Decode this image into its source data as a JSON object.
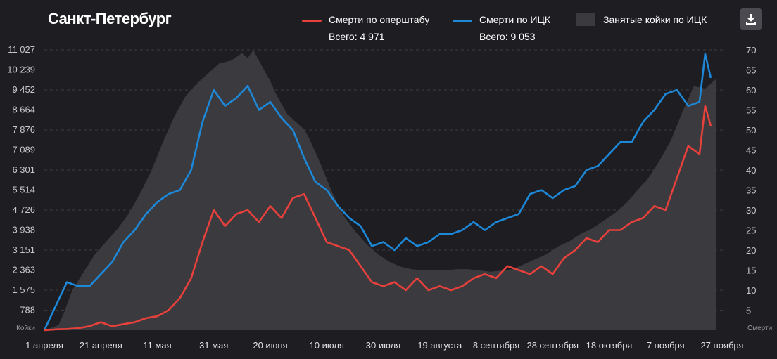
{
  "title": "Санкт-Петербург",
  "legend": {
    "opershtab": {
      "label": "Смерти по оперштабу",
      "total": "Всего: 4 971",
      "color": "#e8413c"
    },
    "ick": {
      "label": "Смерти по ИЦК",
      "total": "Всего: 9 053",
      "color": "#1e88d8"
    },
    "beds": {
      "label": "Занятые койки по ИЦК",
      "color": "#3a3a3f"
    }
  },
  "download_icon": "download-icon",
  "chart_data": {
    "type": "line",
    "x_ticks": [
      "1 апреля",
      "21 апреля",
      "11 мая",
      "31 мая",
      "20 июня",
      "10 июля",
      "30 июля",
      "19 августа",
      "8 сентября",
      "28 сентября",
      "18 октября",
      "7 ноября",
      "27 ноября"
    ],
    "y_left": {
      "label": "Койки",
      "ticks": [
        "788",
        "1 575",
        "2 363",
        "3 151",
        "3 938",
        "4 726",
        "5 514",
        "6 301",
        "7 089",
        "7 876",
        "8 664",
        "9 452",
        "10 239",
        "11 027"
      ],
      "range": [
        0,
        11027
      ]
    },
    "y_right": {
      "label": "Смерти",
      "ticks": [
        "5",
        "10",
        "15",
        "20",
        "25",
        "30",
        "35",
        "40",
        "45",
        "50",
        "55",
        "60",
        "65",
        "70"
      ],
      "range": [
        0,
        70
      ]
    },
    "grid": true,
    "series": [
      {
        "name": "Занятые койки по ИЦК",
        "axis": "left",
        "type": "area",
        "x": [
          0,
          5,
          7,
          10,
          14,
          18,
          22,
          26,
          30,
          34,
          38,
          42,
          46,
          50,
          54,
          58,
          62,
          66,
          70,
          72,
          74,
          76,
          78,
          80,
          82,
          84,
          86,
          88,
          90,
          92,
          94,
          98,
          102,
          106,
          110,
          114,
          118,
          122,
          126,
          130,
          134,
          138,
          142,
          146,
          150,
          154,
          158,
          162,
          166,
          170,
          174,
          178,
          182,
          186,
          190,
          194,
          198,
          202,
          206,
          210,
          214,
          218,
          222,
          226,
          230,
          234,
          238
        ],
        "values": [
          0,
          200,
          700,
          1600,
          2300,
          3000,
          3500,
          4000,
          4600,
          5400,
          6300,
          7400,
          8400,
          9200,
          9700,
          10100,
          10500,
          10600,
          10900,
          10700,
          11027,
          10600,
          10200,
          9800,
          9300,
          8900,
          8500,
          8300,
          8100,
          7900,
          7500,
          6500,
          5400,
          4500,
          3900,
          3400,
          3000,
          2700,
          2500,
          2400,
          2350,
          2350,
          2350,
          2400,
          2400,
          2350,
          2300,
          2350,
          2400,
          2600,
          2800,
          3000,
          3300,
          3500,
          3800,
          4000,
          4300,
          4600,
          5000,
          5500,
          6000,
          6700,
          7500,
          8600,
          9600,
          9500,
          9900
        ]
      },
      {
        "name": "Смерти по оперштабу",
        "axis": "right",
        "x": [
          0,
          4,
          8,
          12,
          16,
          20,
          24,
          28,
          32,
          36,
          40,
          44,
          48,
          52,
          56,
          60,
          64,
          68,
          72,
          76,
          80,
          84,
          88,
          92,
          96,
          100,
          104,
          108,
          112,
          116,
          120,
          124,
          128,
          132,
          136,
          140,
          144,
          148,
          152,
          156,
          160,
          164,
          168,
          172,
          176,
          180,
          184,
          188,
          192,
          196,
          200,
          204,
          208,
          212,
          216,
          220,
          224,
          228,
          232,
          234,
          236
        ],
        "values": [
          0,
          0.2,
          0.3,
          0.5,
          1,
          2,
          1,
          1.5,
          2,
          3,
          3.5,
          5,
          8,
          13,
          22,
          30,
          26,
          29,
          30,
          27,
          31,
          28,
          33,
          34,
          28,
          22,
          21,
          20,
          16,
          12,
          11,
          12,
          10,
          13,
          10,
          11,
          10,
          11,
          13,
          14,
          13,
          16,
          15,
          14,
          16,
          14,
          18,
          20,
          23,
          22,
          25,
          25,
          27,
          28,
          31,
          30,
          38,
          46,
          44,
          56,
          51
        ]
      },
      {
        "name": "Смерти по ИЦК",
        "axis": "right",
        "x": [
          0,
          4,
          8,
          12,
          16,
          20,
          24,
          28,
          32,
          36,
          40,
          44,
          48,
          52,
          56,
          60,
          64,
          68,
          72,
          76,
          80,
          84,
          88,
          92,
          96,
          100,
          104,
          108,
          112,
          116,
          120,
          124,
          128,
          132,
          136,
          140,
          144,
          148,
          152,
          156,
          160,
          164,
          168,
          172,
          176,
          180,
          184,
          188,
          192,
          196,
          200,
          204,
          208,
          212,
          216,
          220,
          224,
          228,
          232,
          234,
          236
        ],
        "values": [
          0,
          6,
          12,
          11,
          11,
          14,
          17,
          22,
          25,
          29,
          32,
          34,
          35,
          40,
          52,
          60,
          56,
          58,
          61,
          55,
          57,
          53,
          50,
          43,
          37,
          35,
          31,
          28,
          26,
          21,
          22,
          20,
          23,
          21,
          22,
          24,
          24,
          25,
          27,
          25,
          27,
          28,
          29,
          34,
          35,
          33,
          35,
          36,
          40,
          41,
          44,
          47,
          47,
          52,
          55,
          59,
          60,
          56,
          57,
          69,
          63
        ]
      }
    ]
  }
}
